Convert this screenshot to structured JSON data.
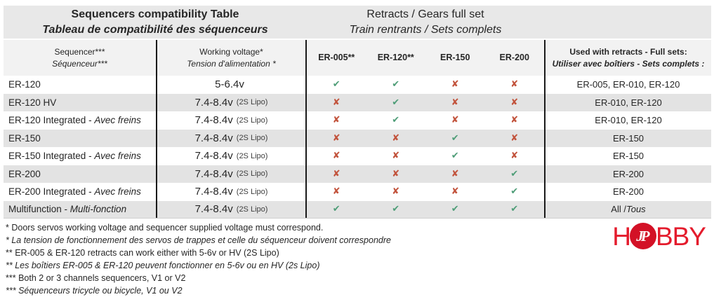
{
  "titles": {
    "left_line1": "Sequencers compatibility Table",
    "left_line2": "Tableau de compatibilité des séquenceurs",
    "right_line1": "Retracts / Gears full set",
    "right_line2": "Train rentrants / Sets complets"
  },
  "subheader": {
    "sequencer_en": "Sequencer***",
    "sequencer_fr": "Séquenceur***",
    "voltage_en": "Working voltage*",
    "voltage_fr": "Tension d'alimentation *",
    "retract_cols": [
      "ER-005**",
      "ER-120**",
      "ER-150",
      "ER-200"
    ],
    "used_en": "Used with retracts - Full sets:",
    "used_fr": "Utiliser avec boîtiers - Sets complets :"
  },
  "icons": {
    "yes": {
      "glyph": "✔",
      "name": "check-icon",
      "color": "#4e9d77"
    },
    "no": {
      "glyph": "✘",
      "name": "cross-icon",
      "color": "#c2533c"
    }
  },
  "rows": [
    {
      "name": "ER-120",
      "name_it": "",
      "volt": "5-6.4v",
      "volt_note": "",
      "marks": [
        "yes",
        "yes",
        "no",
        "no"
      ],
      "used": "ER-005, ER-010, ER-120",
      "used_it": ""
    },
    {
      "name": "ER-120 HV",
      "name_it": "",
      "volt": "7.4-8.4v",
      "volt_note": "(2S Lipo)",
      "marks": [
        "no",
        "yes",
        "no",
        "no"
      ],
      "used": "ER-010, ER-120",
      "used_it": ""
    },
    {
      "name": "ER-120 Integrated - ",
      "name_it": "Avec freins",
      "volt": "7.4-8.4v",
      "volt_note": "(2S Lipo)",
      "marks": [
        "no",
        "yes",
        "no",
        "no"
      ],
      "used": "ER-010, ER-120",
      "used_it": ""
    },
    {
      "name": "ER-150",
      "name_it": "",
      "volt": "7.4-8.4v",
      "volt_note": "(2S Lipo)",
      "marks": [
        "no",
        "no",
        "yes",
        "no"
      ],
      "used": "ER-150",
      "used_it": ""
    },
    {
      "name": "ER-150 Integrated - ",
      "name_it": "Avec freins",
      "volt": "7.4-8.4v",
      "volt_note": "(2S Lipo)",
      "marks": [
        "no",
        "no",
        "yes",
        "no"
      ],
      "used": "ER-150",
      "used_it": ""
    },
    {
      "name": "ER-200",
      "name_it": "",
      "volt": "7.4-8.4v",
      "volt_note": "(2S Lipo)",
      "marks": [
        "no",
        "no",
        "no",
        "yes"
      ],
      "used": "ER-200",
      "used_it": ""
    },
    {
      "name": "ER-200 Integrated - ",
      "name_it": "Avec freins",
      "volt": "7.4-8.4v",
      "volt_note": "(2S Lipo)",
      "marks": [
        "no",
        "no",
        "no",
        "yes"
      ],
      "used": "ER-200",
      "used_it": ""
    },
    {
      "name": "Multifunction - ",
      "name_it": "Multi-fonction",
      "volt": "7.4-8.4v",
      "volt_note": "(2S Lipo)",
      "marks": [
        "yes",
        "yes",
        "yes",
        "yes"
      ],
      "used": "All / ",
      "used_it": "Tous"
    }
  ],
  "notes": [
    "* Doors servos working voltage and sequencer supplied voltage must correspond.",
    "* La tension de fonctionnement des servos de trappes et celle du séquenceur doivent correspondre",
    "** ER-005 & ER-120 retracts can work either with 5-6v or HV (2S Lipo)",
    "** Les boîtiers ER-005 & ER-120 peuvent fonctionner en 5-6v ou en HV (2s Lipo)",
    "*** Both 2 or 3 channels sequencers, V1 or V2",
    "*** Séquenceurs tricycle ou bicycle, V1 ou V2"
  ],
  "logo": {
    "h": "H",
    "jp": "JP",
    "rest": "BBY",
    "red": "#e41b2c",
    "circle_red": "#d31126"
  },
  "colors": {
    "check_green": "#4e9d77",
    "cross_red": "#c2533c",
    "title_band": "#e8e8e8",
    "subheader_bg": "#f2f2f2",
    "stripe_bg": "#e3e3e3"
  }
}
